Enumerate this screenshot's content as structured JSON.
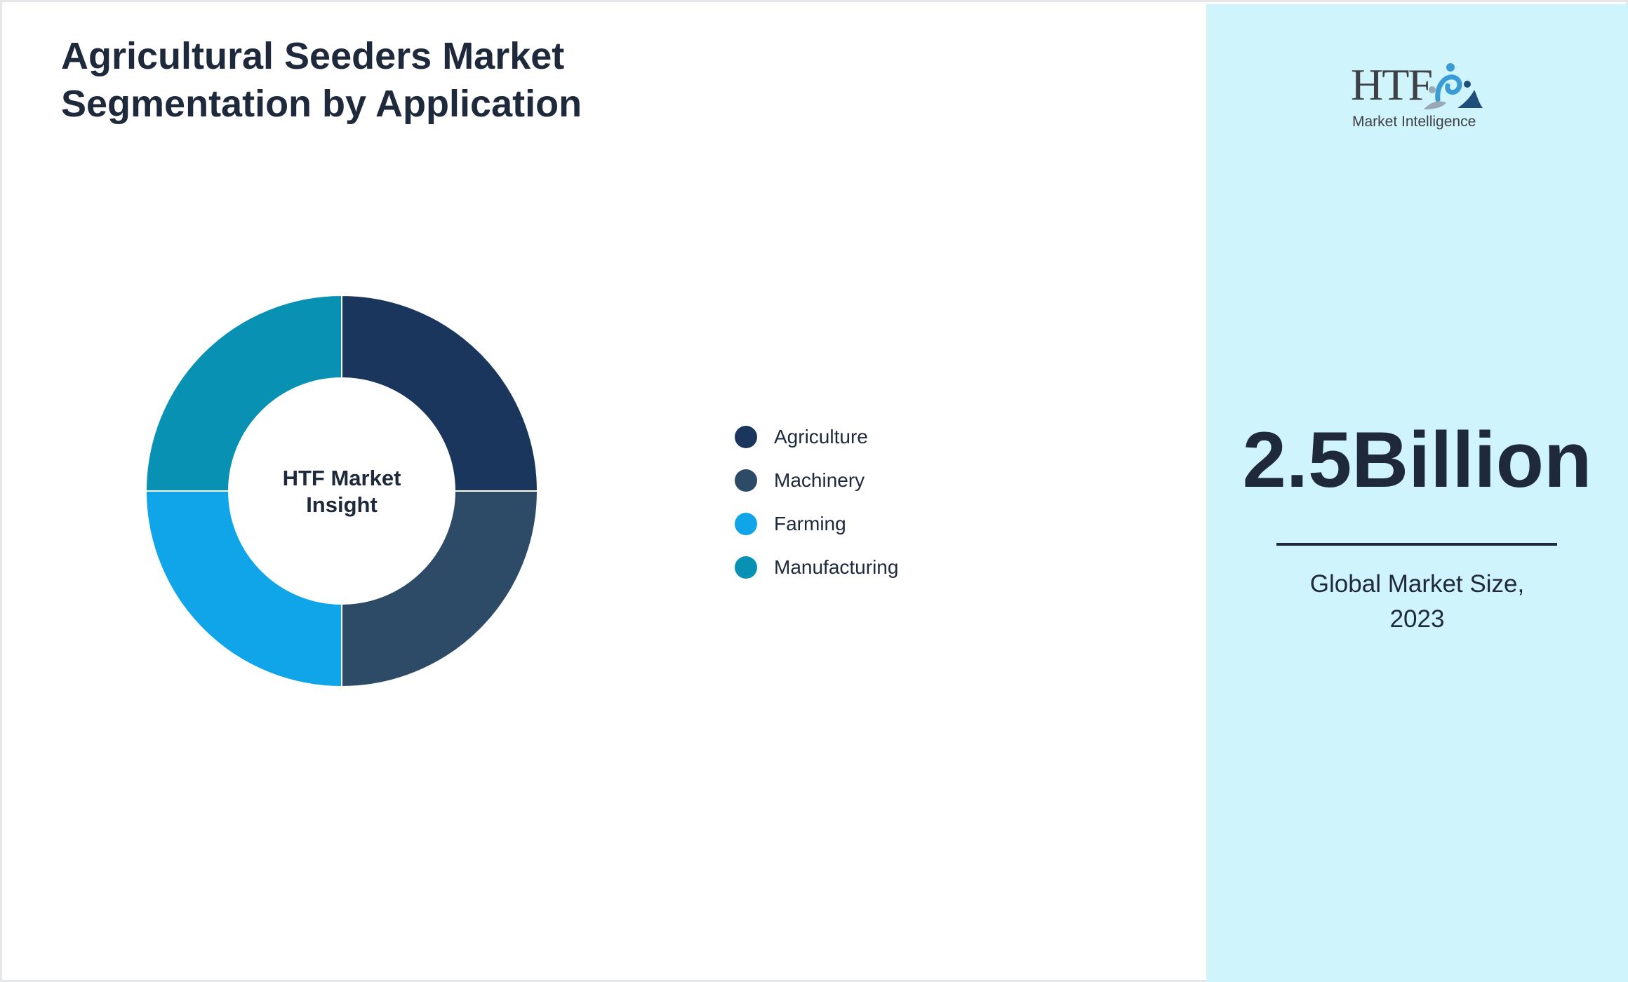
{
  "header": {
    "title_line1": "Agricultural Seeders Market",
    "title_line2": "Segmentation by Application"
  },
  "chart_data": {
    "type": "pie",
    "variant": "donut",
    "center_label_line1": "HTF Market",
    "center_label_line2": "Insight",
    "categories": [
      "Agriculture",
      "Machinery",
      "Farming",
      "Manufacturing"
    ],
    "values": [
      25,
      25,
      25,
      25
    ],
    "colors": [
      "#1b365d",
      "#2d4a66",
      "#10a5e8",
      "#0891b2"
    ],
    "legend_position": "right"
  },
  "legend": {
    "items": [
      {
        "label": "Agriculture",
        "color": "#1b365d"
      },
      {
        "label": "Machinery",
        "color": "#2d4a66"
      },
      {
        "label": "Farming",
        "color": "#10a5e8"
      },
      {
        "label": "Manufacturing",
        "color": "#0891b2"
      }
    ]
  },
  "sidebar": {
    "logo_text": "HTF",
    "logo_subtitle": "Market Intelligence",
    "market_value": "2.5Billion",
    "market_label_line1": "Global Market Size,",
    "market_label_line2": "2023",
    "background_color": "#cff4fc"
  }
}
